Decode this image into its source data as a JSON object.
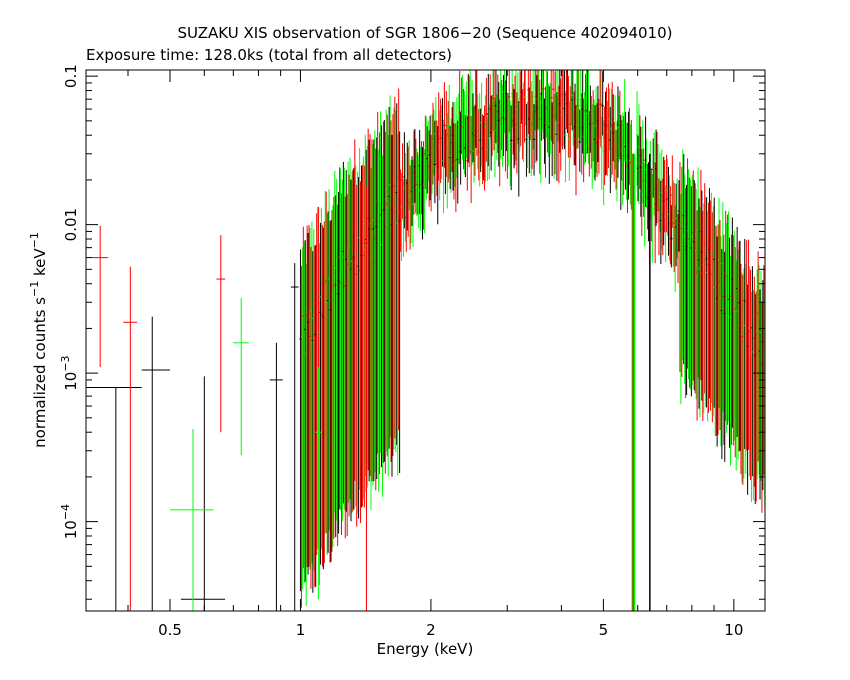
{
  "chart_data": {
    "type": "scatter",
    "title": "SUZAKU XIS observation of SGR 1806−20 (Sequence 402094010)",
    "subtitle": "Exposure time: 128.0ks (total from all detectors)",
    "xlabel": "Energy (keV)",
    "ylabel_main": "normalized counts s",
    "ylabel_sup1": "−1",
    "ylabel_mid": " keV",
    "ylabel_sup2": "−1",
    "x_scale": "log",
    "y_scale": "log",
    "xlim": [
      0.32,
      11.8
    ],
    "ylim": [
      2.5e-05,
      0.11
    ],
    "x_ticks": [
      {
        "value": 0.5,
        "label": "0.5"
      },
      {
        "value": 1,
        "label": "1"
      },
      {
        "value": 2,
        "label": "2"
      },
      {
        "value": 5,
        "label": "5"
      },
      {
        "value": 10,
        "label": "10"
      }
    ],
    "y_ticks": [
      {
        "value": 0.0001,
        "base": "10",
        "exp": "−4"
      },
      {
        "value": 0.001,
        "base": "10",
        "exp": "−3"
      },
      {
        "value": 0.01,
        "label": "0.01"
      },
      {
        "value": 0.1,
        "label": "0.1"
      }
    ],
    "grid": false,
    "legend": "none",
    "series": [
      {
        "color": "#000000",
        "points": [
          {
            "x": 0.375,
            "xerr": [
              0.32,
              0.43
            ],
            "y": 0.0008,
            "yerr": [
              2.5e-05,
              0.0008
            ]
          },
          {
            "x": 0.455,
            "xerr": [
              0.43,
              0.5
            ],
            "y": 0.00105,
            "yerr": [
              2.5e-05,
              0.0024
            ]
          },
          {
            "x": 0.6,
            "xerr": [
              0.53,
              0.67
            ],
            "y": 3e-05,
            "yerr": [
              2.5e-05,
              0.00095
            ]
          },
          {
            "x": 0.88,
            "xerr": [
              0.85,
              0.91
            ],
            "y": 0.0009,
            "yerr": [
              2.5e-05,
              0.0016
            ]
          },
          {
            "x": 0.97,
            "xerr": [
              0.95,
              0.99
            ],
            "y": 0.0038,
            "yerr": [
              2.5e-05,
              0.0055
            ]
          }
        ]
      },
      {
        "color": "#ff0000",
        "points": [
          {
            "x": 0.345,
            "xerr": [
              0.33,
              0.36
            ],
            "y": 0.006,
            "yerr": [
              0.0011,
              0.0098
            ]
          },
          {
            "x": 0.405,
            "xerr": [
              0.39,
              0.42
            ],
            "y": 0.0022,
            "yerr": [
              2.5e-05,
              0.0052
            ]
          },
          {
            "x": 0.655,
            "xerr": [
              0.64,
              0.67
            ],
            "y": 0.0043,
            "yerr": [
              0.0004,
              0.0085
            ]
          },
          {
            "x": 1.42,
            "xerr": [
              1.4,
              1.44
            ],
            "y": 0.0075,
            "yerr": [
              2.5e-05,
              0.018
            ]
          }
        ]
      },
      {
        "color": "#00ff00",
        "points": [
          {
            "x": 0.565,
            "xerr": [
              0.5,
              0.63
            ],
            "y": 0.00012,
            "yerr": [
              2.5e-05,
              0.00042
            ]
          },
          {
            "x": 0.73,
            "xerr": [
              0.7,
              0.76
            ],
            "y": 0.0016,
            "yerr": [
              0.00028,
              0.0032
            ]
          },
          {
            "x": 1.1,
            "xerr": [
              1.08,
              1.12
            ],
            "y": 0.0004,
            "yerr": [
              3e-05,
              0.0011
            ]
          }
        ]
      }
    ],
    "spectrum_model": {
      "description_points": [
        {
          "x": 1.0,
          "y": 0.0015
        },
        {
          "x": 1.3,
          "y": 0.006
        },
        {
          "x": 1.7,
          "y": 0.015
        },
        {
          "x": 2.2,
          "y": 0.035
        },
        {
          "x": 3.0,
          "y": 0.055
        },
        {
          "x": 4.0,
          "y": 0.055
        },
        {
          "x": 5.0,
          "y": 0.045
        },
        {
          "x": 5.75,
          "y": 0.035
        },
        {
          "x": 7.0,
          "y": 0.012
        },
        {
          "x": 8.5,
          "y": 0.006
        },
        {
          "x": 10.0,
          "y": 0.003
        },
        {
          "x": 11.8,
          "y": 0.0015
        }
      ],
      "note_colors": [
        "#000000",
        "#ff0000",
        "#00ff00"
      ]
    }
  }
}
